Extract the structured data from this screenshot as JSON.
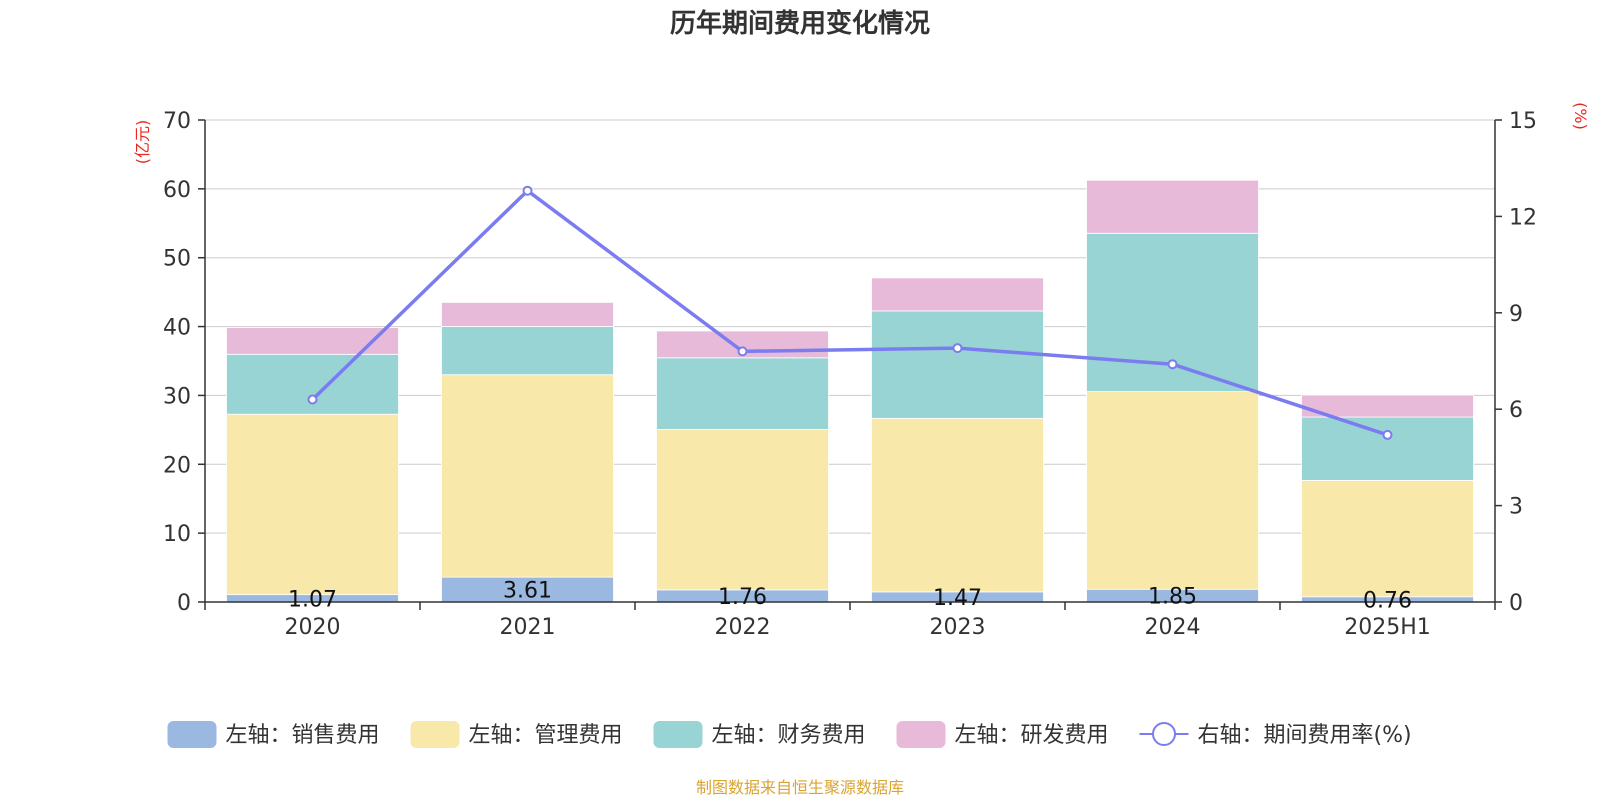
{
  "chart_data": {
    "type": "bar",
    "title": "历年期间费用变化情况",
    "categories": [
      "2020",
      "2021",
      "2022",
      "2023",
      "2024",
      "2025H1"
    ],
    "left_axis": {
      "unit": "(亿元)",
      "ylim": [
        0,
        70
      ],
      "ticks": [
        "0",
        "10",
        "20",
        "30",
        "40",
        "50",
        "60",
        "70"
      ]
    },
    "right_axis": {
      "unit": "(%)",
      "ylim": [
        0,
        15
      ],
      "ticks": [
        "0",
        "3",
        "6",
        "9",
        "12",
        "15"
      ]
    },
    "series": [
      {
        "name": "左轴：销售费用",
        "kind": "bar",
        "axis": "left",
        "color": "#9bb8e1",
        "values": [
          1.07,
          3.61,
          1.76,
          1.47,
          1.85,
          0.76
        ],
        "labels": [
          "1.07",
          "3.61",
          "1.76",
          "1.47",
          "1.85",
          "0.76"
        ]
      },
      {
        "name": "左轴：管理费用",
        "kind": "bar",
        "axis": "left",
        "color": "#f8e8a9",
        "values": [
          26.2,
          29.4,
          23.3,
          25.2,
          28.7,
          16.9
        ]
      },
      {
        "name": "左轴：财务费用",
        "kind": "bar",
        "axis": "left",
        "color": "#98d4d4",
        "values": [
          8.7,
          7.0,
          10.4,
          15.6,
          23.0,
          9.2
        ]
      },
      {
        "name": "左轴：研发费用",
        "kind": "bar",
        "axis": "left",
        "color": "#e8bad9",
        "values": [
          3.9,
          3.5,
          3.9,
          4.8,
          7.7,
          3.2
        ]
      },
      {
        "name": "右轴：期间费用率(%)",
        "kind": "line",
        "axis": "right",
        "color": "#7b7cef",
        "values": [
          6.3,
          12.8,
          7.8,
          7.9,
          7.4,
          5.2
        ]
      }
    ],
    "grid": true,
    "legend_position": "bottom"
  },
  "source_note": "制图数据来自恒生聚源数据库",
  "colors": {
    "unit": "#e8281e",
    "source": "#d9a431",
    "grid": "#cccccc",
    "axis": "#333333"
  }
}
